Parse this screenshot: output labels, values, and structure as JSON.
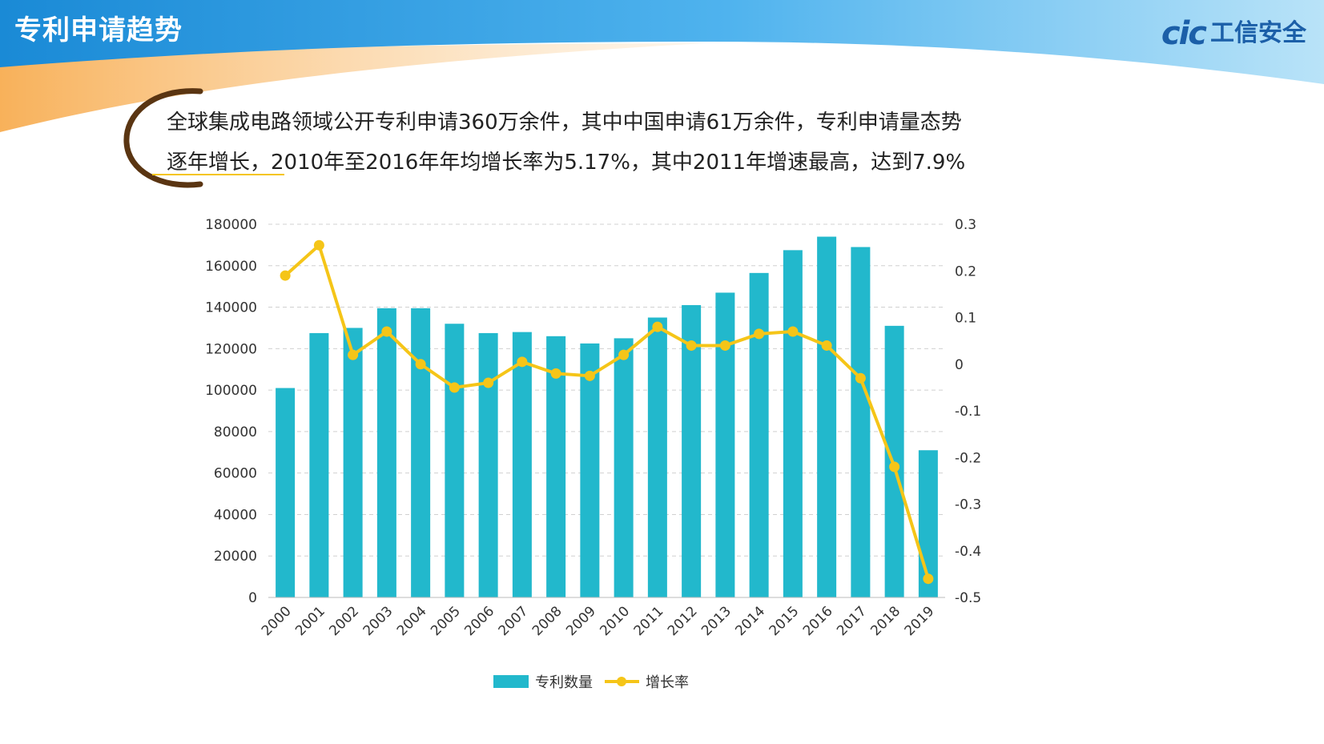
{
  "slide": {
    "title": "专利申请趋势",
    "logo_mark": "cic",
    "logo_text": "工信安全",
    "summary_line1": "全球集成电路领域公开专利申请360万余件，其中中国申请61万余件，专利申请量态势",
    "summary_line2": "逐年增长，2010年至2016年年均增长率为5.17%，其中2011年增速最高，达到7.9%"
  },
  "colors": {
    "bar": "#22b8cc",
    "line": "#f5c518",
    "title_band_left": "#1e90d8",
    "title_band_right": "#a6dcf7",
    "orange_swoosh": "#f7a441",
    "quote_arc": "#5a3512",
    "grid": "#d0d0d0"
  },
  "chart_data": {
    "type": "bar",
    "categories": [
      "2000",
      "2001",
      "2002",
      "2003",
      "2004",
      "2005",
      "2006",
      "2007",
      "2008",
      "2009",
      "2010",
      "2011",
      "2012",
      "2013",
      "2014",
      "2015",
      "2016",
      "2017",
      "2018",
      "2019"
    ],
    "series": [
      {
        "name": "专利数量",
        "type": "bar",
        "axis": "left",
        "values": [
          101000,
          127500,
          130000,
          139500,
          139500,
          132000,
          127500,
          128000,
          126000,
          122500,
          125000,
          135000,
          141000,
          147000,
          156500,
          167500,
          174000,
          169000,
          131000,
          71000
        ]
      },
      {
        "name": "增长率",
        "type": "line",
        "axis": "right",
        "values": [
          0.19,
          0.255,
          0.02,
          0.07,
          0.0,
          -0.05,
          -0.04,
          0.005,
          -0.02,
          -0.025,
          0.02,
          0.08,
          0.04,
          0.04,
          0.065,
          0.07,
          0.04,
          -0.03,
          -0.22,
          -0.46
        ]
      }
    ],
    "y_left": {
      "min": 0,
      "max": 180000,
      "ticks": [
        "180000",
        "160000",
        "140000",
        "120000",
        "100000",
        "80000",
        "60000",
        "40000",
        "20000",
        "0"
      ]
    },
    "y_right": {
      "min": -0.5,
      "max": 0.3,
      "ticks": [
        "0.3",
        "0.2",
        "0.1",
        "0",
        "-0.1",
        "-0.2",
        "-0.3",
        "-0.4",
        "-0.5"
      ]
    },
    "grid": true,
    "legend_position": "bottom-center"
  }
}
